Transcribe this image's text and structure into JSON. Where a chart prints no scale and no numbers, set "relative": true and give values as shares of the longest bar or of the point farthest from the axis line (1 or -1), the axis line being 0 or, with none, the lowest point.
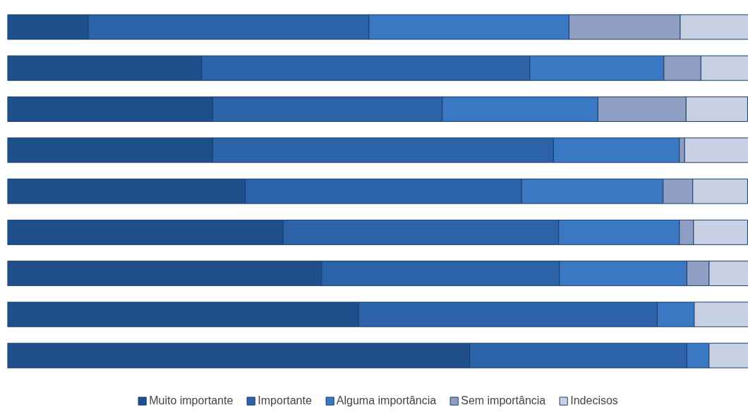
{
  "chart_data": {
    "type": "bar",
    "orientation": "horizontal",
    "stacked": true,
    "relative": true,
    "legend": "bottom",
    "grid": false,
    "categories": [
      null,
      null,
      null,
      null,
      null,
      null,
      null,
      null,
      null
    ],
    "series": [
      {
        "name": "Muito importante",
        "color": "#1f4f8a",
        "values": [
          0.109,
          0.262,
          0.277,
          0.277,
          0.321,
          0.372,
          0.424,
          0.474,
          0.624
        ]
      },
      {
        "name": "Importante",
        "color": "#2b62a8",
        "values": [
          0.379,
          0.443,
          0.31,
          0.46,
          0.373,
          0.372,
          0.321,
          0.403,
          0.293
        ]
      },
      {
        "name": "Alguma importância",
        "color": "#3a78c4",
        "values": [
          0.27,
          0.181,
          0.21,
          0.17,
          0.191,
          0.163,
          0.172,
          0.05,
          0.03
        ]
      },
      {
        "name": "Sem importância",
        "color": "#8f9fc4",
        "values": [
          0.15,
          0.05,
          0.119,
          0.007,
          0.04,
          0.019,
          0.03,
          0,
          0
        ]
      },
      {
        "name": "Indecisos",
        "color": "#c8d0e3",
        "values": [
          0.092,
          0.064,
          0.083,
          0.086,
          0.074,
          0.073,
          0.053,
          0.073,
          0.053
        ]
      }
    ]
  }
}
